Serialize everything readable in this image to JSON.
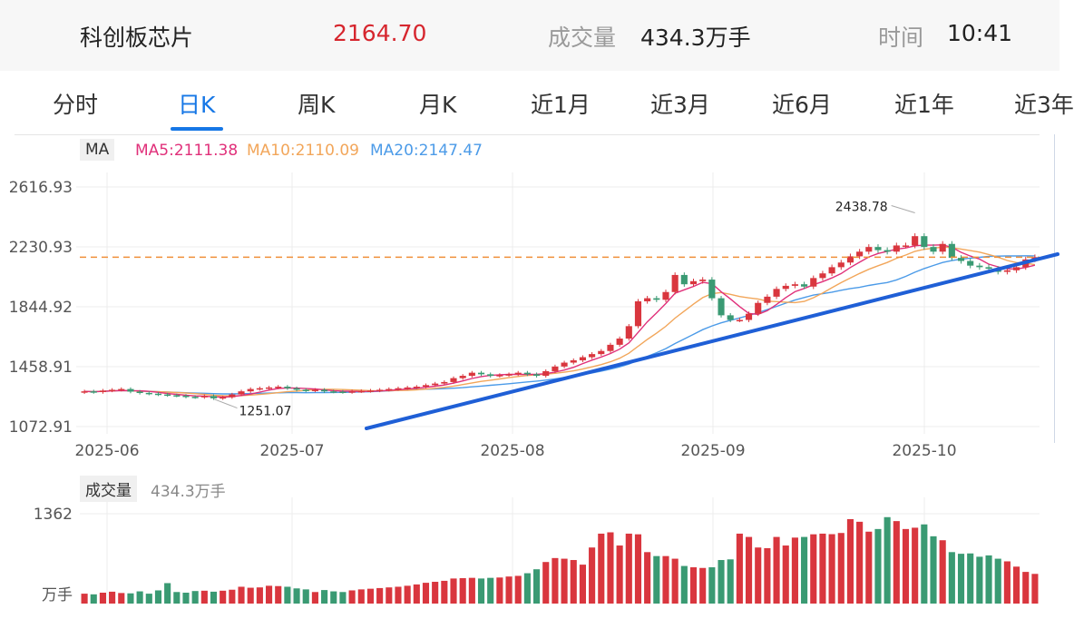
{
  "header": {
    "name": "科创板芯片",
    "price": "2164.70",
    "volume_label": "成交量",
    "volume_value": "434.3万手",
    "time_label": "时间",
    "time_value": "10:41"
  },
  "tabs": [
    {
      "label": "分时"
    },
    {
      "label": "日K",
      "active": true
    },
    {
      "label": "周K"
    },
    {
      "label": "月K"
    },
    {
      "label": "近1月"
    },
    {
      "label": "近3月"
    },
    {
      "label": "近6月"
    },
    {
      "label": "近1年"
    },
    {
      "label": "近3年"
    }
  ],
  "legend": {
    "ma_tag": "MA",
    "ma5": "MA5:2111.38",
    "ma10": "MA10:2110.09",
    "ma20": "MA20:2147.47"
  },
  "volume_panel": {
    "tag": "成交量",
    "value": "434.3万手",
    "top_tick": "1362",
    "unit": "万手"
  },
  "colors": {
    "up": "#d9363e",
    "down": "#3a9a73",
    "ma5": "#e0307a",
    "ma10": "#f2a65a",
    "ma20": "#4c9be8",
    "trendline": "#1f5fd6",
    "last_price_line": "#f0903a",
    "active_tab": "#1677e6"
  },
  "chart_data": {
    "type": "candlestick",
    "y_ticks": [
      "2616.93",
      "2230.93",
      "1844.92",
      "1458.91",
      "1072.91"
    ],
    "ylim": [
      1072.91,
      2616.93
    ],
    "x_ticks": [
      "2025-06",
      "2025-07",
      "2025-08",
      "2025-09",
      "2025-10"
    ],
    "annotations": {
      "high": "2438.78",
      "low": "1251.07"
    },
    "last_price": 2164.7,
    "closes": [
      1300,
      1295,
      1305,
      1310,
      1315,
      1298,
      1290,
      1285,
      1280,
      1275,
      1272,
      1265,
      1262,
      1270,
      1255,
      1262,
      1280,
      1300,
      1315,
      1320,
      1325,
      1330,
      1320,
      1310,
      1305,
      1310,
      1300,
      1298,
      1295,
      1300,
      1302,
      1305,
      1310,
      1315,
      1320,
      1325,
      1330,
      1340,
      1350,
      1360,
      1385,
      1400,
      1420,
      1410,
      1400,
      1405,
      1410,
      1420,
      1410,
      1400,
      1430,
      1460,
      1485,
      1500,
      1520,
      1540,
      1560,
      1600,
      1640,
      1720,
      1880,
      1900,
      1890,
      1940,
      2050,
      1990,
      2010,
      2020,
      1900,
      1790,
      1760,
      1760,
      1800,
      1870,
      1910,
      1960,
      1980,
      1990,
      1975,
      2030,
      2060,
      2100,
      2130,
      2170,
      2200,
      2230,
      2210,
      2200,
      2240,
      2240,
      2300,
      2230,
      2200,
      2250,
      2160,
      2140,
      2110,
      2100,
      2090,
      2070,
      2080,
      2100,
      2150,
      2164.7
    ],
    "volumes": [
      150,
      140,
      165,
      180,
      160,
      155,
      185,
      150,
      200,
      310,
      175,
      165,
      190,
      195,
      180,
      195,
      210,
      255,
      240,
      245,
      270,
      265,
      255,
      230,
      215,
      175,
      205,
      185,
      175,
      200,
      215,
      225,
      235,
      245,
      255,
      270,
      290,
      315,
      330,
      345,
      380,
      385,
      390,
      380,
      390,
      395,
      410,
      420,
      460,
      520,
      630,
      690,
      680,
      660,
      590,
      850,
      1060,
      1080,
      880,
      1060,
      1050,
      780,
      720,
      720,
      680,
      570,
      550,
      540,
      550,
      660,
      670,
      1060,
      1010,
      850,
      840,
      1010,
      880,
      1000,
      1010,
      1050,
      1060,
      1052,
      1070,
      1280,
      1240,
      1090,
      1130,
      1310,
      1250,
      1130,
      1150,
      1200,
      1020,
      960,
      780,
      755,
      760,
      710,
      730,
      680,
      640,
      560,
      480,
      450
    ],
    "volume_top_tick": 1362,
    "series": [
      {
        "name": "MA5",
        "values": [
          "2111.38"
        ]
      },
      {
        "name": "MA10",
        "values": [
          "2110.09"
        ]
      },
      {
        "name": "MA20",
        "values": [
          "2147.47"
        ]
      }
    ]
  }
}
